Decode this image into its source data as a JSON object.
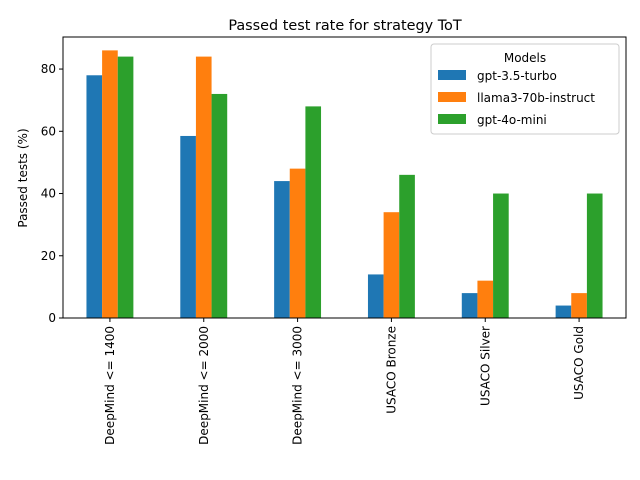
{
  "chart_data": {
    "type": "bar",
    "title": "Passed test rate for strategy ToT",
    "xlabel": "",
    "ylabel": "Passed tests (%)",
    "ylim": [
      0,
      90.3
    ],
    "yticks": [
      0,
      20,
      40,
      60,
      80
    ],
    "grid": false,
    "legend": {
      "title": "Models",
      "placement": "top-right"
    },
    "categories": [
      "DeepMind <= 1400",
      "DeepMind <= 2000",
      "DeepMind <= 3000",
      "USACO Bronze",
      "USACO Silver",
      "USACO Gold"
    ],
    "series": [
      {
        "name": "gpt-3.5-turbo",
        "color": "#1f77b4",
        "values": [
          78,
          58.5,
          44,
          14,
          8,
          4
        ]
      },
      {
        "name": "llama3-70b-instruct",
        "color": "#ff7f0e",
        "values": [
          86,
          84,
          48,
          34,
          12,
          8
        ]
      },
      {
        "name": "gpt-4o-mini",
        "color": "#2ca02c",
        "values": [
          84,
          72,
          68,
          46,
          40,
          40
        ]
      }
    ]
  }
}
